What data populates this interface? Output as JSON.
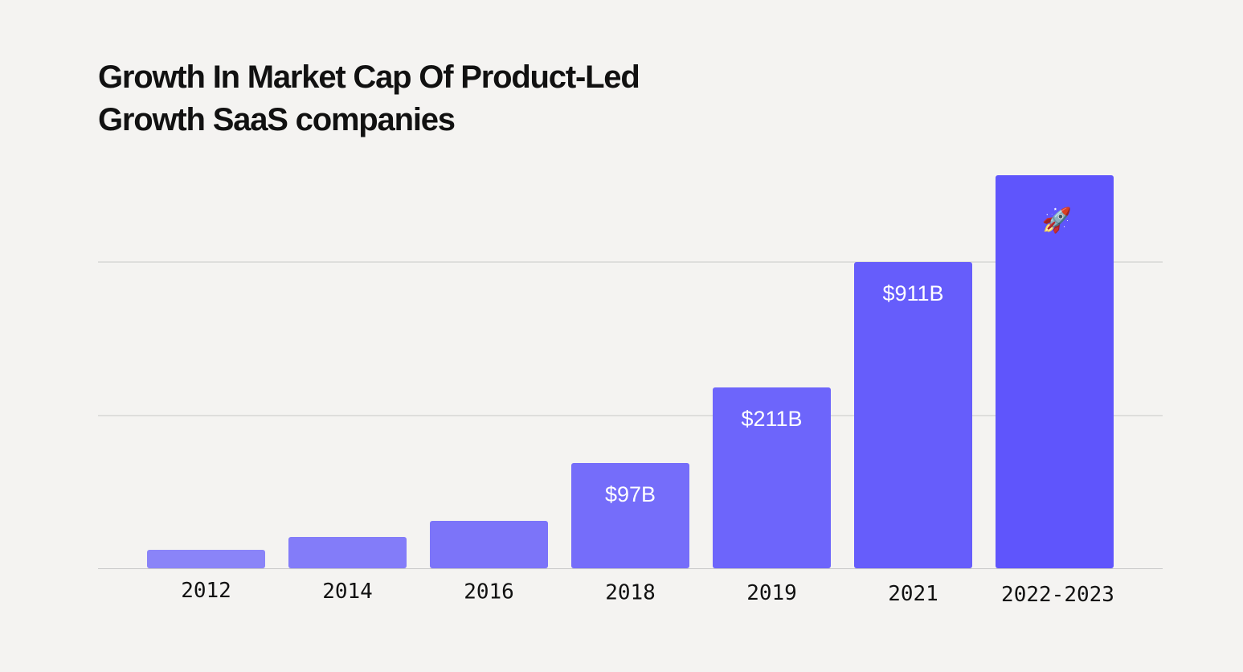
{
  "chart_data": {
    "type": "bar",
    "title_lines": [
      "Growth In Market Cap Of Product-Led",
      "Growth SaaS companies"
    ],
    "categories": [
      "2012",
      "2014",
      "2016",
      "2018",
      "2019",
      "2021",
      "2022-2023"
    ],
    "values": [
      13,
      25,
      36,
      97,
      211,
      911,
      1400
    ],
    "data_labels": [
      "",
      "",
      "",
      "$97B",
      "$211B",
      "$911B",
      ""
    ],
    "annotation_icon": "rocket-icon",
    "annotation_glyph": "🚀",
    "annotation_category": "2022-2023",
    "xlabel": "",
    "ylabel": "",
    "y_tick_labels": "none",
    "grid": true,
    "legend": "none",
    "colors": {
      "bar_start": "#8a84f8",
      "bar_end": "#5f55fc",
      "label_text": "#ffffff",
      "grid": "#c8c8c8",
      "axis_text": "#111111",
      "background": "#f4f3f1"
    }
  }
}
